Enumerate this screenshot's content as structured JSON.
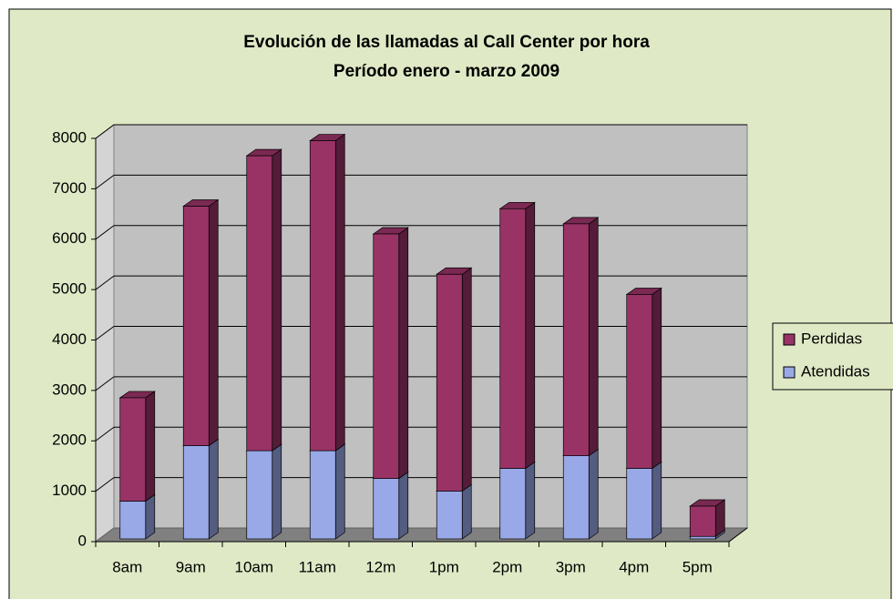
{
  "chart_data": {
    "type": "bar",
    "stacked": true,
    "three_d": true,
    "title": "Evolución de las llamadas al Call Center por hora",
    "subtitle": "Período enero - marzo 2009",
    "categories": [
      "8am",
      "9am",
      "10am",
      "11am",
      "12m",
      "1pm",
      "2pm",
      "3pm",
      "4pm",
      "5pm"
    ],
    "series": [
      {
        "name": "Atendidas",
        "color": "#99a8e6",
        "values": [
          750,
          1850,
          1750,
          1750,
          1200,
          950,
          1400,
          1650,
          1400,
          50
        ]
      },
      {
        "name": "Perdidas",
        "color": "#993366",
        "values": [
          2050,
          4750,
          5850,
          6150,
          4850,
          4300,
          5150,
          4600,
          3450,
          600
        ]
      }
    ],
    "ylim": [
      0,
      8000
    ],
    "yticks": [
      0,
      1000,
      2000,
      3000,
      4000,
      5000,
      6000,
      7000,
      8000
    ],
    "grid": true,
    "legend": "right"
  }
}
